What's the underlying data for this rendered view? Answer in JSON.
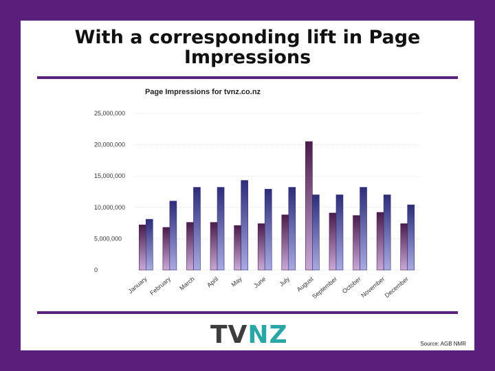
{
  "slide": {
    "title_line1": "With a corresponding lift in Page",
    "title_line2": "Impressions",
    "logo_tv": "TV",
    "logo_nz": "NZ",
    "source": "Source: AGB NMR"
  },
  "colors": {
    "border": "#5a1f7a",
    "series1_dark": "#4a1c4a",
    "series1_light": "#c9a9d8",
    "series2_dark": "#2d2d7a",
    "series2_light": "#a9aae0",
    "logo_accent": "#2aa6a6"
  },
  "chart_data": {
    "type": "bar",
    "title": "Page Impressions for tvnz.co.nz",
    "categories": [
      "January",
      "February",
      "March",
      "April",
      "May",
      "June",
      "July",
      "August",
      "September",
      "October",
      "November",
      "December"
    ],
    "series": [
      {
        "values": [
          7200000,
          6800000,
          7600000,
          7600000,
          7100000,
          7400000,
          8800000,
          20500000,
          9100000,
          8700000,
          9200000,
          7400000
        ]
      },
      {
        "values": [
          8100000,
          11000000,
          13200000,
          13200000,
          14300000,
          12900000,
          13200000,
          12000000,
          12000000,
          13200000,
          12000000,
          10400000
        ]
      }
    ],
    "ylim": [
      0,
      25000000
    ],
    "yticks": [
      "25,000,000",
      "20,000,000",
      "15,000,000",
      "10,000,000",
      "5,000,000",
      "0"
    ],
    "grid": true,
    "legend": "none"
  }
}
